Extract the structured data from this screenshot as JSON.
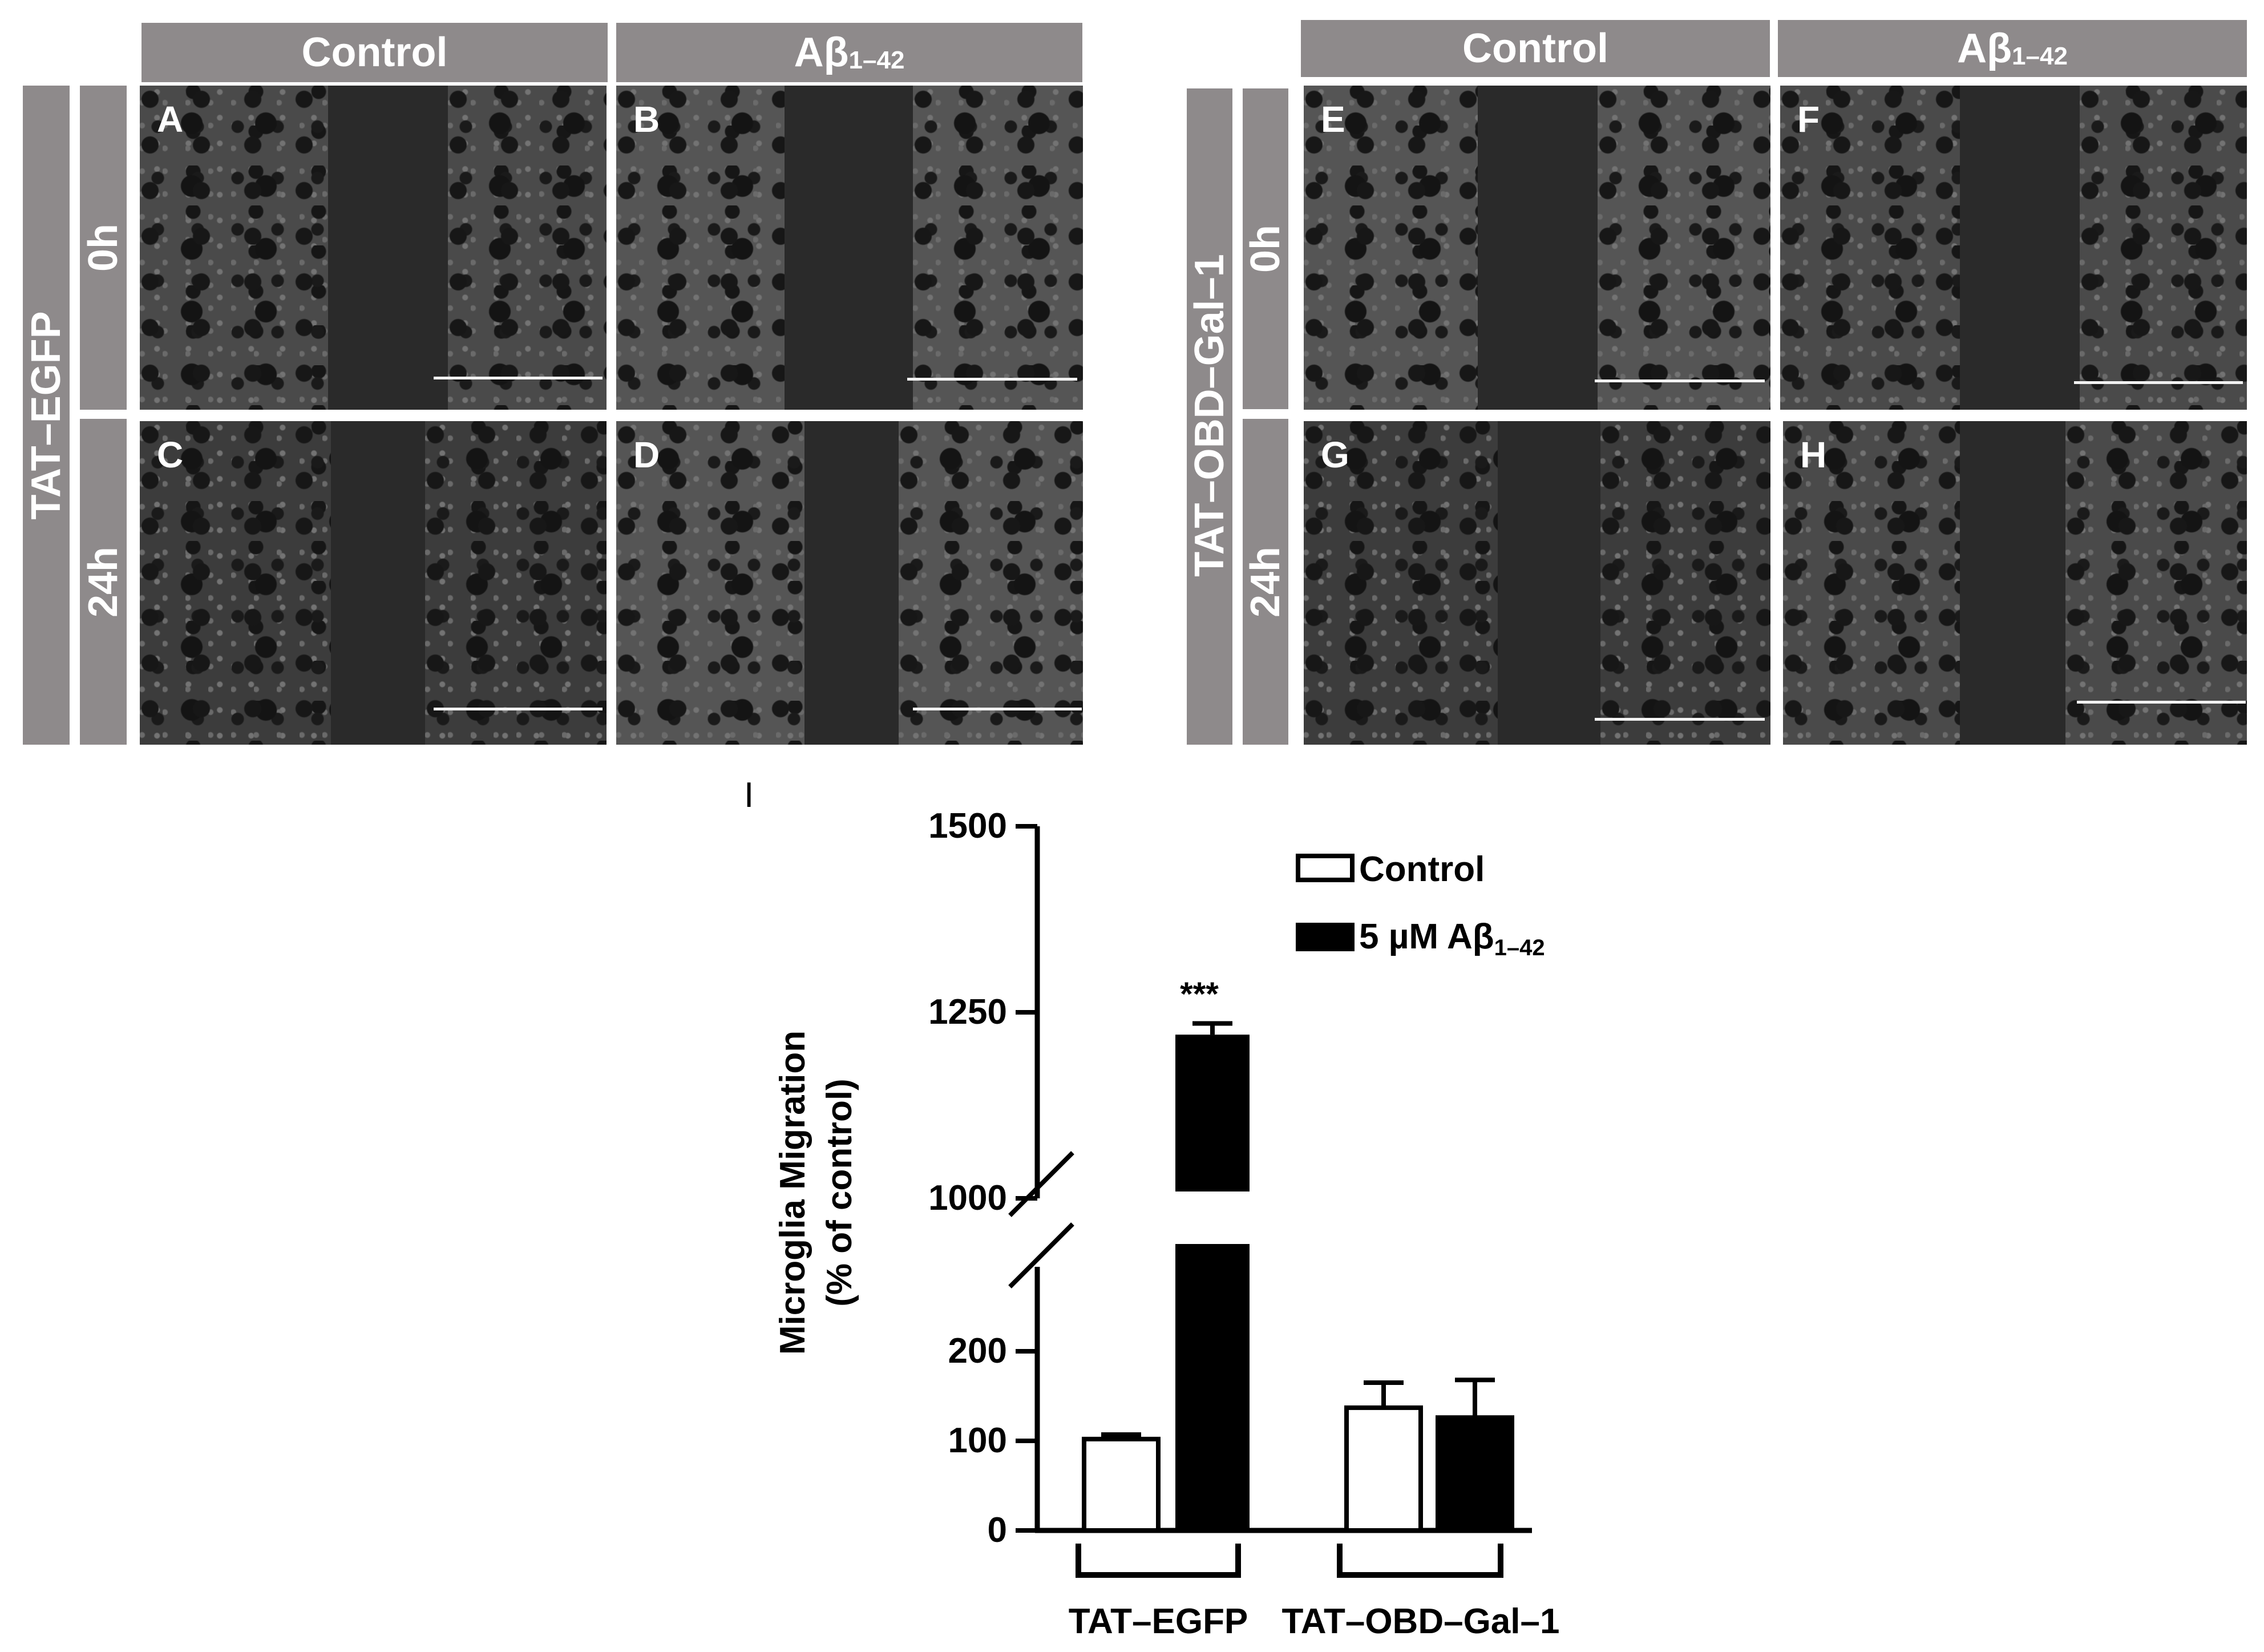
{
  "left_group": {
    "col_control": "Control",
    "col_abeta_base": "Aβ",
    "col_abeta_sub": "1–42",
    "row_group": "TAT–EGFP",
    "row_0h": "0h",
    "row_24h": "24h",
    "panels": [
      "A",
      "B",
      "C",
      "D"
    ]
  },
  "right_group": {
    "col_control": "Control",
    "col_abeta_base": "Aβ",
    "col_abeta_sub": "1–42",
    "row_group": "TAT–OBD–Gal–1",
    "row_0h": "0h",
    "row_24h": "24h",
    "panels": [
      "E",
      "F",
      "G",
      "H"
    ]
  },
  "chart_label": "I",
  "chart_data": {
    "type": "bar",
    "categories": [
      "TAT–EGFP",
      "TAT–OBD–Gal–1"
    ],
    "series": [
      {
        "name": "Control",
        "values": [
          102,
          137
        ],
        "errors": [
          5,
          28
        ],
        "fill": "#ffffff"
      },
      {
        "name": "5 µM Aβ1–42",
        "values": [
          1220,
          126
        ],
        "errors": [
          15,
          42
        ],
        "fill": "#000000"
      }
    ],
    "ylabel_line1": "Microglia Migration",
    "ylabel_line2": "(% of control)",
    "yticks": [
      "0",
      "100",
      "200",
      "1000",
      "1250",
      "1500"
    ],
    "axis_break": true,
    "legend_control": "Control",
    "legend_abeta_prefix": "5 µM Aβ",
    "legend_abeta_sub": "1–42",
    "legend_placement": "top-right",
    "significance": "***"
  }
}
